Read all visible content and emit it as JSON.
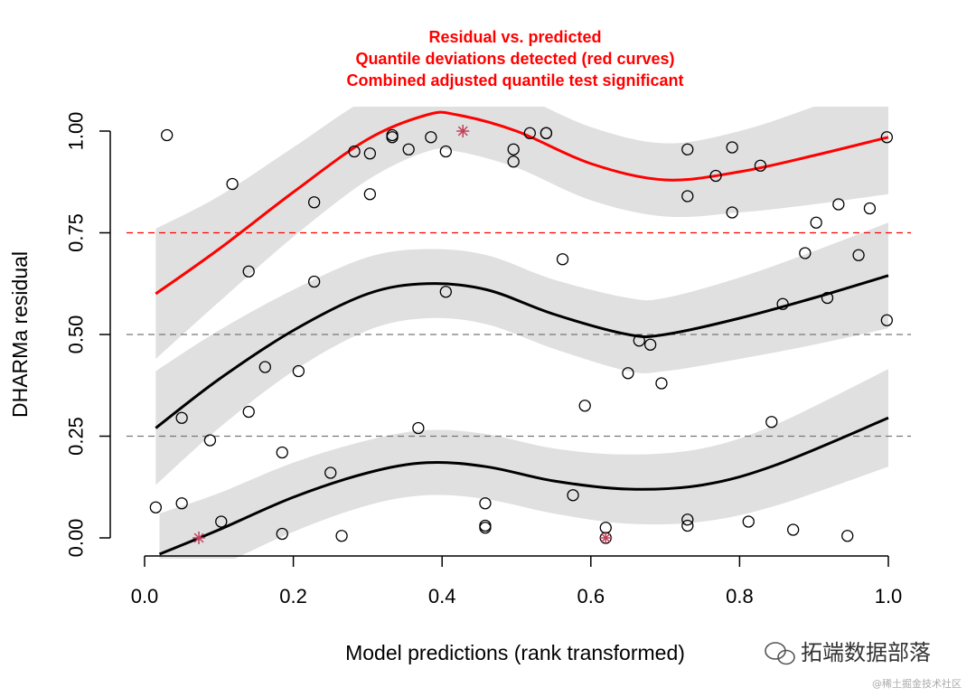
{
  "chart_data": {
    "type": "scatter",
    "title_lines": [
      "Residual vs. predicted",
      "Quantile deviations detected (red curves)",
      "Combined adjusted quantile test significant"
    ],
    "xlabel": "Model predictions (rank transformed)",
    "ylabel": "DHARMa residual",
    "xlim": [
      0,
      1
    ],
    "ylim": [
      0,
      1
    ],
    "x_ticks": [
      0.0,
      0.2,
      0.4,
      0.6,
      0.8,
      1.0
    ],
    "x_tick_labels": [
      "0.0",
      "0.2",
      "0.4",
      "0.6",
      "0.8",
      "1.0"
    ],
    "y_ticks": [
      0.0,
      0.25,
      0.5,
      0.75,
      1.0
    ],
    "y_tick_labels": [
      "0.00",
      "0.25",
      "0.50",
      "0.75",
      "1.00"
    ],
    "reference_lines": [
      {
        "y": 0.25,
        "color": "#777777"
      },
      {
        "y": 0.5,
        "color": "#777777"
      },
      {
        "y": 0.75,
        "color": "#ff0000"
      }
    ],
    "colors": {
      "significant": "#ff0000",
      "normal": "#000000",
      "band": "#e0e0e0",
      "outlier": "#c0405a"
    },
    "quantile_curves": [
      {
        "name": "q0.25",
        "color": "#000000",
        "x": [
          0.02,
          0.1,
          0.2,
          0.3,
          0.38,
          0.46,
          0.55,
          0.65,
          0.75,
          0.85,
          1.0
        ],
        "y": [
          -0.04,
          0.02,
          0.1,
          0.16,
          0.185,
          0.175,
          0.14,
          0.12,
          0.13,
          0.18,
          0.295
        ],
        "band_halfwidth": [
          0.1,
          0.09,
          0.085,
          0.08,
          0.08,
          0.08,
          0.08,
          0.085,
          0.09,
          0.1,
          0.12
        ]
      },
      {
        "name": "q0.5",
        "color": "#000000",
        "x": [
          0.015,
          0.1,
          0.2,
          0.3,
          0.38,
          0.46,
          0.55,
          0.65,
          0.7,
          0.8,
          0.9,
          1.0
        ],
        "y": [
          0.27,
          0.39,
          0.51,
          0.6,
          0.625,
          0.61,
          0.55,
          0.5,
          0.5,
          0.54,
          0.59,
          0.645
        ],
        "band_halfwidth": [
          0.14,
          0.12,
          0.1,
          0.09,
          0.085,
          0.085,
          0.085,
          0.09,
          0.09,
          0.1,
          0.115,
          0.13
        ]
      },
      {
        "name": "q0.75",
        "color": "#ff0000",
        "x": [
          0.015,
          0.1,
          0.2,
          0.3,
          0.38,
          0.42,
          0.5,
          0.6,
          0.7,
          0.8,
          0.9,
          1.0
        ],
        "y": [
          0.6,
          0.71,
          0.85,
          0.98,
          1.04,
          1.04,
          1.0,
          0.92,
          0.88,
          0.9,
          0.94,
          0.985
        ],
        "band_halfwidth": [
          0.16,
          0.13,
          0.11,
          0.1,
          0.09,
          0.09,
          0.09,
          0.09,
          0.09,
          0.1,
          0.12,
          0.14
        ]
      }
    ],
    "points": [
      {
        "x": 0.015,
        "y": 0.075
      },
      {
        "x": 0.03,
        "y": 0.99
      },
      {
        "x": 0.05,
        "y": 0.295
      },
      {
        "x": 0.05,
        "y": 0.085
      },
      {
        "x": 0.088,
        "y": 0.24
      },
      {
        "x": 0.103,
        "y": 0.04
      },
      {
        "x": 0.118,
        "y": 0.87
      },
      {
        "x": 0.14,
        "y": 0.655
      },
      {
        "x": 0.14,
        "y": 0.31
      },
      {
        "x": 0.162,
        "y": 0.42
      },
      {
        "x": 0.185,
        "y": 0.01
      },
      {
        "x": 0.185,
        "y": 0.21
      },
      {
        "x": 0.207,
        "y": 0.41
      },
      {
        "x": 0.228,
        "y": 0.825
      },
      {
        "x": 0.228,
        "y": 0.63
      },
      {
        "x": 0.25,
        "y": 0.16
      },
      {
        "x": 0.265,
        "y": 0.005
      },
      {
        "x": 0.282,
        "y": 0.95
      },
      {
        "x": 0.303,
        "y": 0.945
      },
      {
        "x": 0.303,
        "y": 0.845
      },
      {
        "x": 0.333,
        "y": 0.99
      },
      {
        "x": 0.333,
        "y": 0.985
      },
      {
        "x": 0.355,
        "y": 0.955
      },
      {
        "x": 0.368,
        "y": 0.27
      },
      {
        "x": 0.385,
        "y": 0.985
      },
      {
        "x": 0.405,
        "y": 0.95
      },
      {
        "x": 0.405,
        "y": 0.605
      },
      {
        "x": 0.458,
        "y": 0.085
      },
      {
        "x": 0.458,
        "y": 0.03
      },
      {
        "x": 0.458,
        "y": 0.025
      },
      {
        "x": 0.496,
        "y": 0.955
      },
      {
        "x": 0.496,
        "y": 0.925
      },
      {
        "x": 0.518,
        "y": 0.995
      },
      {
        "x": 0.54,
        "y": 0.995
      },
      {
        "x": 0.54,
        "y": 0.995
      },
      {
        "x": 0.562,
        "y": 0.685
      },
      {
        "x": 0.576,
        "y": 0.105
      },
      {
        "x": 0.592,
        "y": 0.325
      },
      {
        "x": 0.62,
        "y": 0.025
      },
      {
        "x": 0.62,
        "y": 0.0
      },
      {
        "x": 0.65,
        "y": 0.405
      },
      {
        "x": 0.665,
        "y": 0.485
      },
      {
        "x": 0.68,
        "y": 0.475
      },
      {
        "x": 0.695,
        "y": 0.38
      },
      {
        "x": 0.73,
        "y": 0.955
      },
      {
        "x": 0.73,
        "y": 0.84
      },
      {
        "x": 0.73,
        "y": 0.045
      },
      {
        "x": 0.73,
        "y": 0.03
      },
      {
        "x": 0.768,
        "y": 0.89
      },
      {
        "x": 0.79,
        "y": 0.96
      },
      {
        "x": 0.79,
        "y": 0.8
      },
      {
        "x": 0.812,
        "y": 0.04
      },
      {
        "x": 0.828,
        "y": 0.915
      },
      {
        "x": 0.843,
        "y": 0.285
      },
      {
        "x": 0.858,
        "y": 0.575
      },
      {
        "x": 0.872,
        "y": 0.02
      },
      {
        "x": 0.888,
        "y": 0.7
      },
      {
        "x": 0.903,
        "y": 0.775
      },
      {
        "x": 0.918,
        "y": 0.59
      },
      {
        "x": 0.933,
        "y": 0.82
      },
      {
        "x": 0.945,
        "y": 0.005
      },
      {
        "x": 0.96,
        "y": 0.695
      },
      {
        "x": 0.975,
        "y": 0.81
      },
      {
        "x": 0.998,
        "y": 0.985
      },
      {
        "x": 0.998,
        "y": 0.535
      }
    ],
    "outlier_points": [
      {
        "x": 0.073,
        "y": 0.0
      },
      {
        "x": 0.428,
        "y": 1.0
      },
      {
        "x": 0.62,
        "y": 0.0
      }
    ]
  },
  "watermark": {
    "main": "拓端数据部落",
    "sub": "@稀土掘金技术社区"
  }
}
